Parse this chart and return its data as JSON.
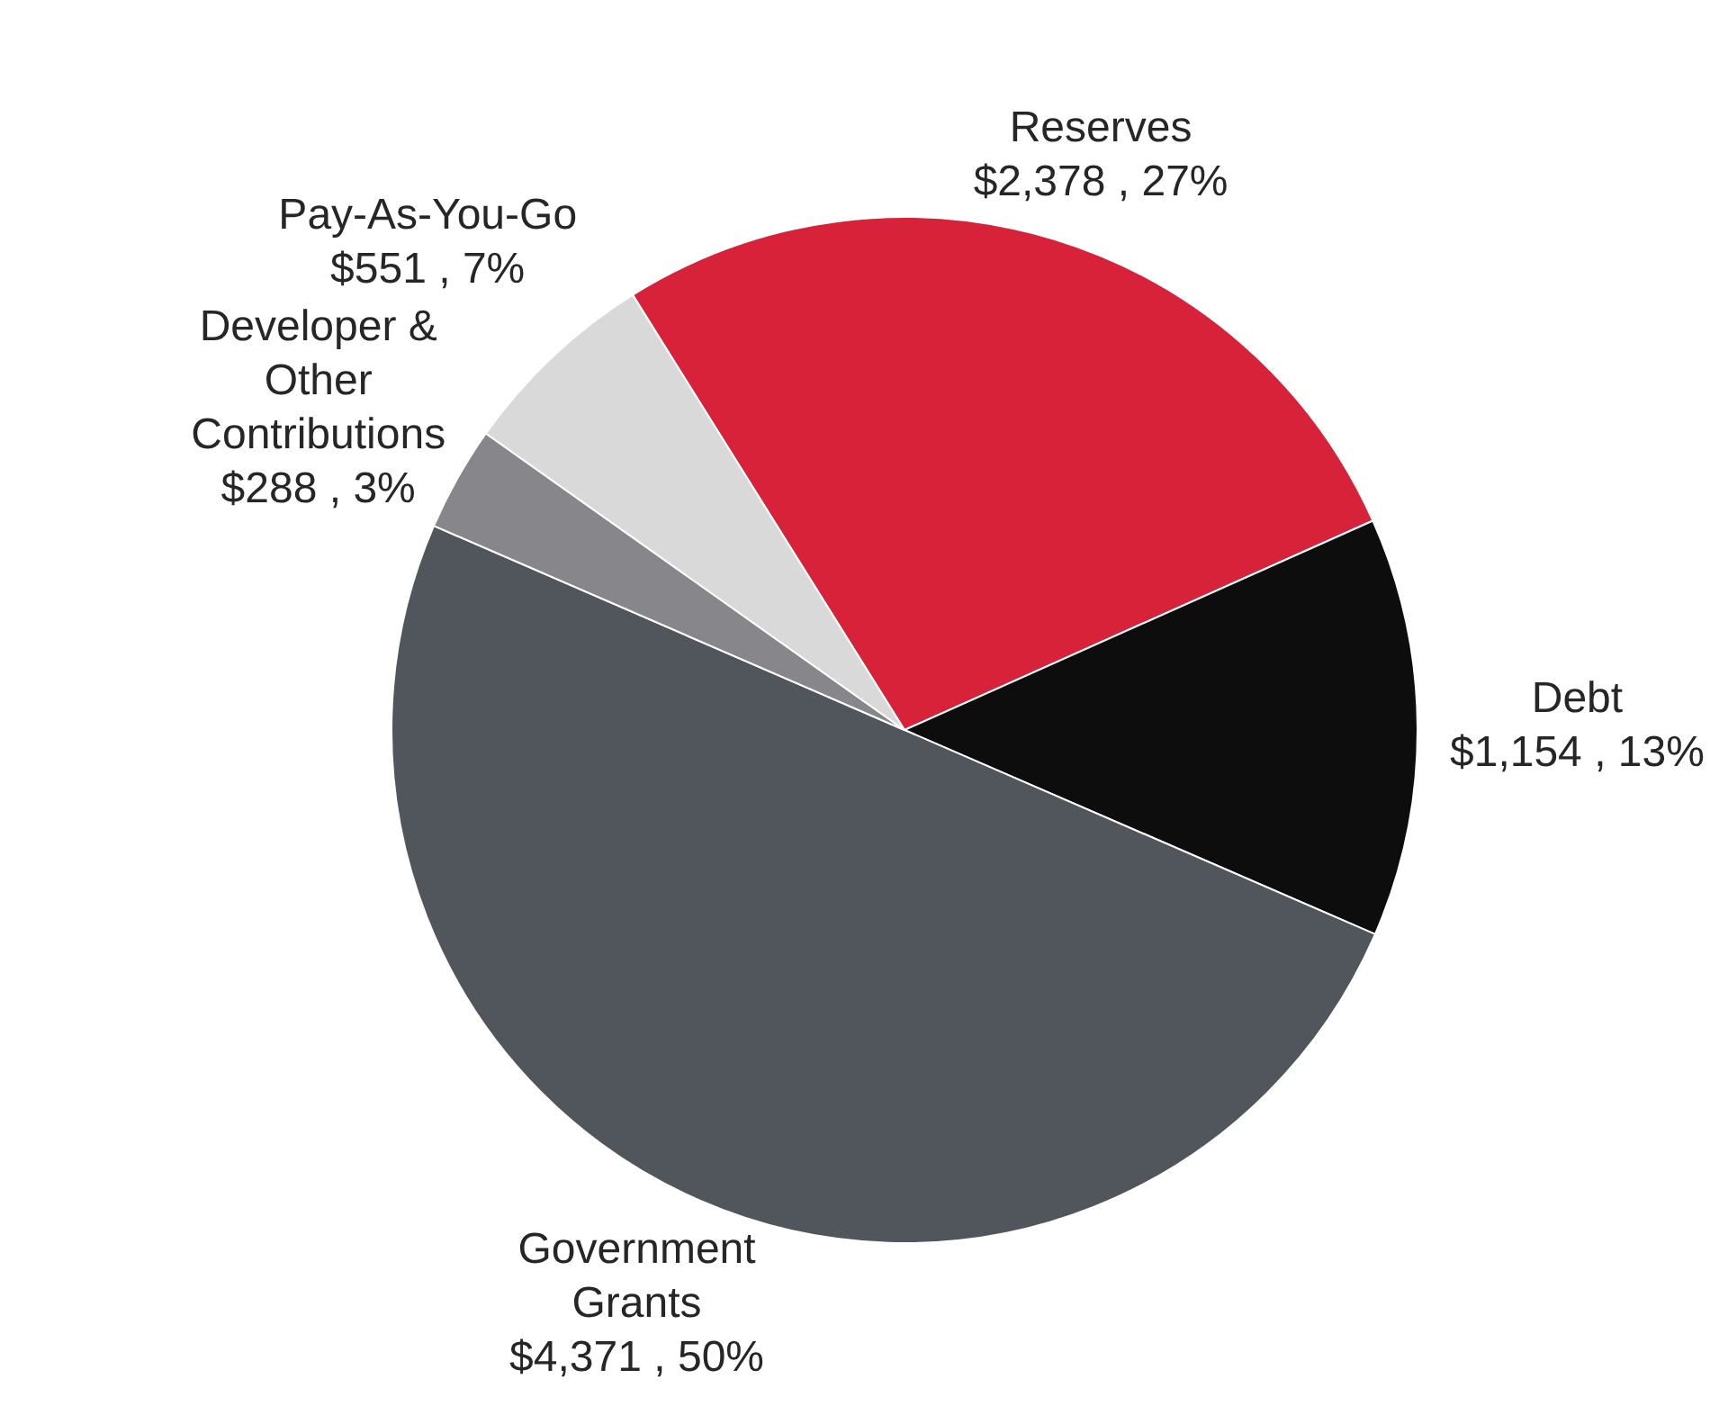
{
  "chart_data": {
    "type": "pie",
    "categories": [
      "Reserves",
      "Debt",
      "Government Grants",
      "Developer & Other Contributions",
      "Pay-As-You-Go"
    ],
    "values": [
      2378,
      1154,
      4371,
      288,
      551
    ],
    "value_labels": [
      "$2,378 , 27%",
      "$1,154 , 13%",
      "$4,371 , 50%",
      "$288 , 3%",
      "$551 , 7%"
    ],
    "colors": [
      "#d7223a",
      "#0d0d0d",
      "#50565c",
      "#87878b",
      "#d9d9d9"
    ]
  }
}
